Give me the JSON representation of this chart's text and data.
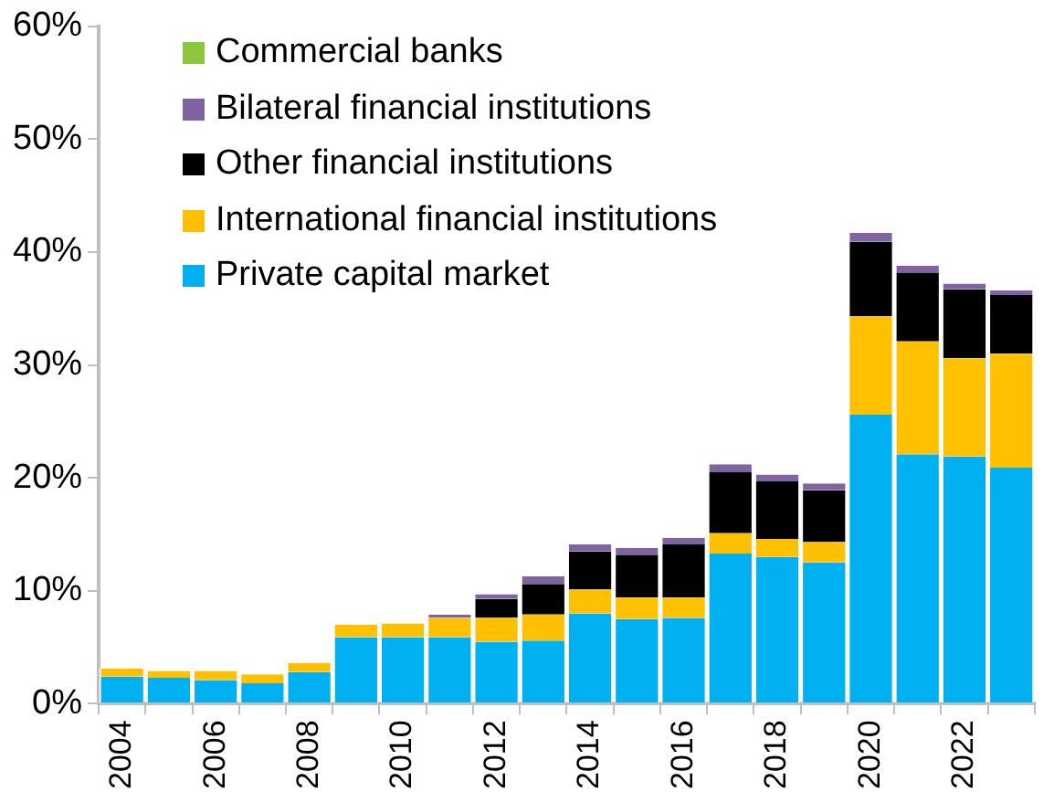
{
  "chart_data": {
    "type": "bar",
    "stacked": true,
    "categories": [
      "2004",
      null,
      "2006",
      null,
      "2008",
      null,
      "2010",
      null,
      "2012",
      null,
      "2014",
      null,
      "2016",
      null,
      "2018",
      null,
      "2020",
      null,
      "2022",
      null
    ],
    "series": [
      {
        "name": "Private capital market",
        "color": "#00b0f0",
        "values": [
          2.4,
          2.3,
          2.1,
          1.8,
          2.8,
          5.9,
          5.9,
          5.9,
          5.5,
          5.6,
          8.0,
          7.5,
          7.6,
          13.3,
          13.0,
          12.5,
          25.6,
          22.1,
          21.9,
          20.9
        ]
      },
      {
        "name": "International financial institutions",
        "color": "#ffc000",
        "values": [
          0.7,
          0.6,
          0.8,
          0.8,
          0.8,
          1.1,
          1.2,
          1.7,
          2.1,
          2.3,
          2.1,
          1.9,
          1.8,
          1.8,
          1.6,
          1.8,
          8.7,
          10.0,
          8.7,
          10.1
        ]
      },
      {
        "name": "Other financial institutions",
        "color": "#000000",
        "values": [
          0,
          0,
          0,
          0,
          0,
          0,
          0,
          0,
          1.7,
          2.7,
          3.4,
          3.8,
          4.7,
          5.4,
          5.1,
          4.6,
          6.6,
          6.1,
          6.1,
          5.2
        ]
      },
      {
        "name": "Bilateral financial institutions",
        "color": "#8064a2",
        "values": [
          0,
          0,
          0,
          0,
          0,
          0,
          0,
          0.3,
          0.4,
          0.7,
          0.6,
          0.6,
          0.6,
          0.7,
          0.6,
          0.6,
          0.8,
          0.6,
          0.5,
          0.4
        ]
      },
      {
        "name": "Commercial banks",
        "color": "#8dc63f",
        "values": [
          0,
          0,
          0,
          0,
          0,
          0,
          0,
          0,
          0,
          0,
          0,
          0,
          0,
          0,
          0,
          0,
          0,
          0,
          0,
          0
        ]
      }
    ],
    "ylim": [
      0,
      60
    ],
    "yticks": [
      {
        "value": 0,
        "label": "0%"
      },
      {
        "value": 10,
        "label": "10%"
      },
      {
        "value": 20,
        "label": "20%"
      },
      {
        "value": 30,
        "label": "30%"
      },
      {
        "value": 40,
        "label": "40%"
      },
      {
        "value": 50,
        "label": "50%"
      },
      {
        "value": 60,
        "label": "60%"
      }
    ],
    "grid": false,
    "legend": "top left"
  }
}
